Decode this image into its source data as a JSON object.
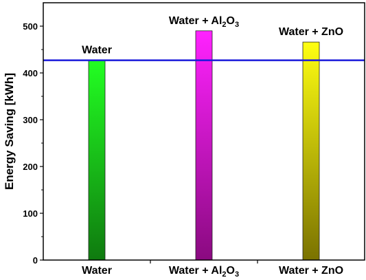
{
  "chart_data": {
    "type": "bar",
    "categories": [
      {
        "base": "Water",
        "sub1": "",
        "mid": "",
        "sub2": ""
      },
      {
        "base": "Water + Al",
        "sub1": "2",
        "mid": "O",
        "sub2": "3"
      },
      {
        "base": "Water + ZnO",
        "sub1": "",
        "mid": "",
        "sub2": ""
      }
    ],
    "values": [
      427,
      490,
      466
    ],
    "bar_labels": [
      {
        "base": "Water",
        "sub1": "",
        "mid": "",
        "sub2": ""
      },
      {
        "base": "Water + Al",
        "sub1": "2",
        "mid": "O",
        "sub2": "3"
      },
      {
        "base": "Water + ZnO",
        "sub1": "",
        "mid": "",
        "sub2": ""
      }
    ],
    "bar_colors": [
      {
        "top": "#22ff22",
        "bottom": "#0f7a0f"
      },
      {
        "top": "#ff22ff",
        "bottom": "#8a0a80"
      },
      {
        "top": "#ffff11",
        "bottom": "#7a7200"
      }
    ],
    "reference_line": {
      "value": 427,
      "color": "#1a1adb"
    },
    "ylabel": "Energy Saving [kWh]",
    "ylim": [
      0,
      550
    ],
    "yticks": [
      0,
      100,
      200,
      300,
      400,
      500
    ],
    "grid": false
  }
}
